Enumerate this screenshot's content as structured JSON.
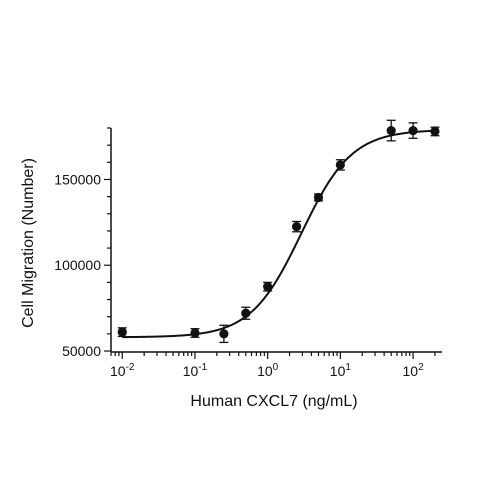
{
  "chart_data": {
    "type": "scatter",
    "title": "",
    "xlabel": "Human CXCL7 (ng/mL)",
    "ylabel": "Cell Migration (Number)",
    "xscale": "log",
    "xlim": [
      0.007,
      250
    ],
    "ylim": [
      50000,
      180000
    ],
    "grid": false,
    "x_ticks": [
      {
        "value": 0.01,
        "base": "10",
        "exp": "-2"
      },
      {
        "value": 0.1,
        "base": "10",
        "exp": "-1"
      },
      {
        "value": 1,
        "base": "10",
        "exp": "0"
      },
      {
        "value": 10,
        "base": "10",
        "exp": "1"
      },
      {
        "value": 100,
        "base": "10",
        "exp": "2"
      }
    ],
    "y_ticks": [
      {
        "value": 50000,
        "label": "50000"
      },
      {
        "value": 100000,
        "label": "100000"
      },
      {
        "value": 150000,
        "label": "150000"
      }
    ],
    "series": [
      {
        "marker": "circle",
        "color": "#111111",
        "x": [
          0.01,
          0.1,
          0.25,
          0.5,
          1,
          2.5,
          5,
          10,
          50,
          100,
          200
        ],
        "y": [
          61000,
          60500,
          60000,
          72000,
          87500,
          122500,
          139500,
          158500,
          178500,
          178500,
          178000
        ],
        "error": [
          2500,
          2500,
          5000,
          3500,
          2500,
          3000,
          2000,
          3000,
          6000,
          4500,
          2500
        ]
      }
    ],
    "fit": {
      "model": "4PL",
      "bottom": 58000,
      "top": 179000,
      "ec50": 2.9,
      "hill": 1.25
    }
  }
}
